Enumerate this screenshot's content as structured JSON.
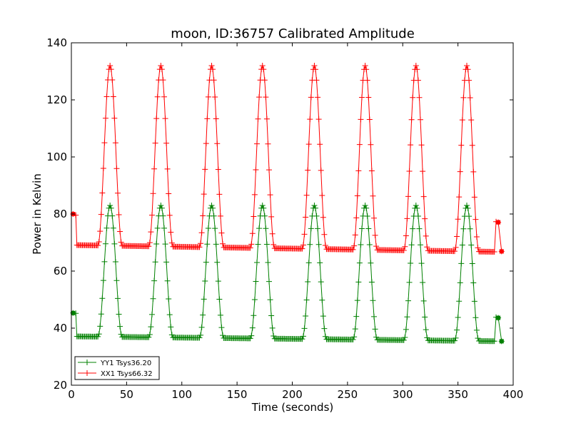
{
  "chart_data": {
    "type": "line",
    "title": "moon, ID:36757 Calibrated Amplitude",
    "xlabel": "Time (seconds)",
    "ylabel": "Power in Kelvin",
    "xlim": [
      0,
      400
    ],
    "ylim": [
      20,
      140
    ],
    "xticks": [
      0,
      50,
      100,
      150,
      200,
      250,
      300,
      350,
      400
    ],
    "yticks": [
      20,
      40,
      60,
      80,
      100,
      120,
      140
    ],
    "grid": false,
    "legend_position": "lower-left",
    "series": [
      {
        "name": "YY1 Tsys36.20",
        "color": "#008000",
        "baseline": 36.2,
        "peak_height": 83,
        "peak_times": [
          35,
          81,
          127,
          173,
          220,
          266,
          312,
          358
        ],
        "peak_half_width": 11,
        "start_points": [
          [
            1.5,
            45.3
          ],
          [
            4,
            45.2
          ]
        ],
        "end_points": [
          [
            384.5,
            43.8
          ],
          [
            386.5,
            43.6
          ],
          [
            389.5,
            35.4
          ]
        ],
        "x_range": [
          5,
          383
        ],
        "baseline_drift": [
          [
            5,
            37.1
          ],
          [
            390,
            35.4
          ]
        ]
      },
      {
        "name": "XX1 Tsys66.32",
        "color": "#ff0000",
        "baseline": 66.3,
        "peak_height": 132,
        "peak_times": [
          35,
          81,
          127,
          173,
          220,
          266,
          312,
          358
        ],
        "peak_half_width": 11,
        "start_points": [
          [
            1.5,
            80
          ],
          [
            4,
            79.6
          ]
        ],
        "end_points": [
          [
            384.5,
            77.3
          ],
          [
            386.5,
            77.1
          ],
          [
            389.5,
            66.9
          ]
        ],
        "x_range": [
          5,
          383
        ],
        "baseline_drift": [
          [
            5,
            69.1
          ],
          [
            390,
            66.7
          ]
        ]
      }
    ]
  }
}
